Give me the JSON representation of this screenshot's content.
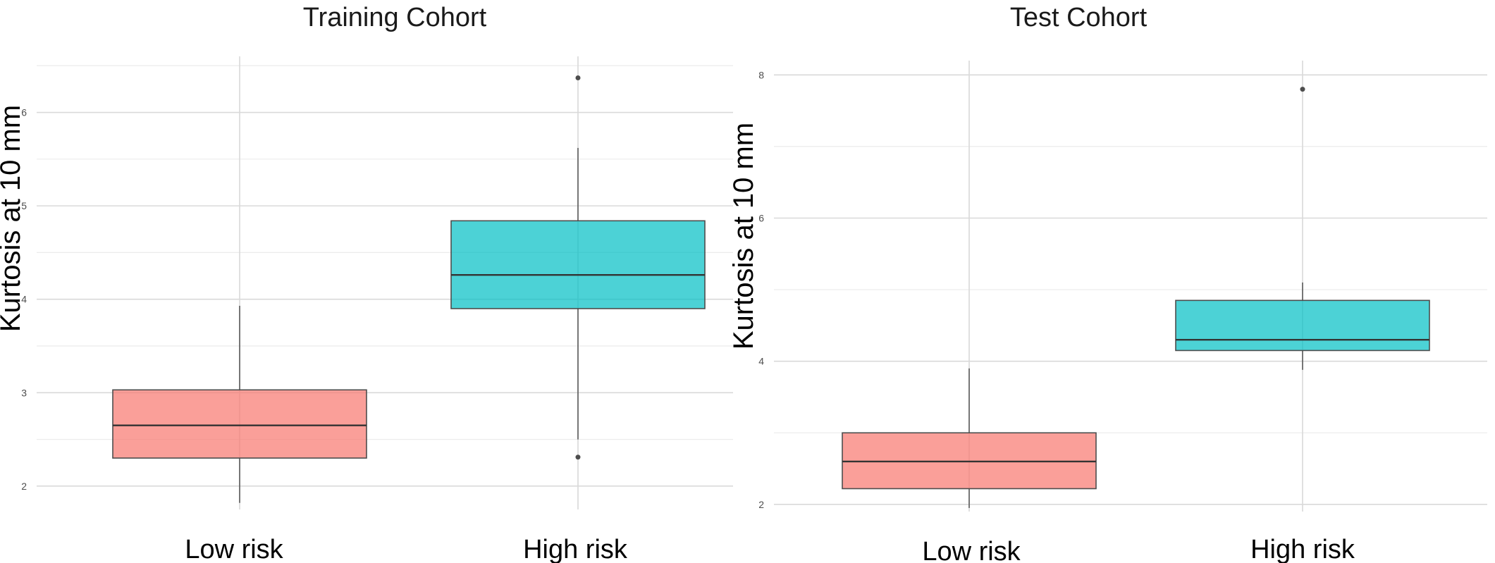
{
  "chart_data": [
    {
      "type": "box",
      "title": "Training Cohort",
      "xlabel": "",
      "ylabel": "Kurtosis at 10 mm",
      "ylim": [
        1.75,
        6.6
      ],
      "yticks": [
        2,
        3,
        4,
        5,
        6
      ],
      "grid": true,
      "categories": [
        "Low risk",
        "High risk"
      ],
      "boxes": [
        {
          "category": "Low risk",
          "color": "#F8766D",
          "whisker_low": 1.82,
          "q1": 2.3,
          "median": 2.65,
          "q3": 3.03,
          "whisker_high": 3.93,
          "outliers": []
        },
        {
          "category": "High risk",
          "color": "#00BFC4",
          "whisker_low": 2.5,
          "q1": 3.9,
          "median": 4.26,
          "q3": 4.84,
          "whisker_high": 5.62,
          "outliers": [
            2.31,
            6.37
          ]
        }
      ]
    },
    {
      "type": "box",
      "title": "Test Cohort",
      "xlabel": "",
      "ylabel": "Kurtosis at 10 mm",
      "ylim": [
        1.9,
        8.2
      ],
      "yticks": [
        2,
        4,
        6,
        8
      ],
      "grid": true,
      "categories": [
        "Low risk",
        "High risk"
      ],
      "boxes": [
        {
          "category": "Low risk",
          "color": "#F8766D",
          "whisker_low": 1.95,
          "q1": 2.22,
          "median": 2.6,
          "q3": 3.0,
          "whisker_high": 3.9,
          "outliers": []
        },
        {
          "category": "High risk",
          "color": "#00BFC4",
          "whisker_low": 3.88,
          "q1": 4.15,
          "median": 4.3,
          "q3": 4.85,
          "whisker_high": 5.1,
          "outliers": [
            7.8
          ]
        }
      ]
    }
  ]
}
